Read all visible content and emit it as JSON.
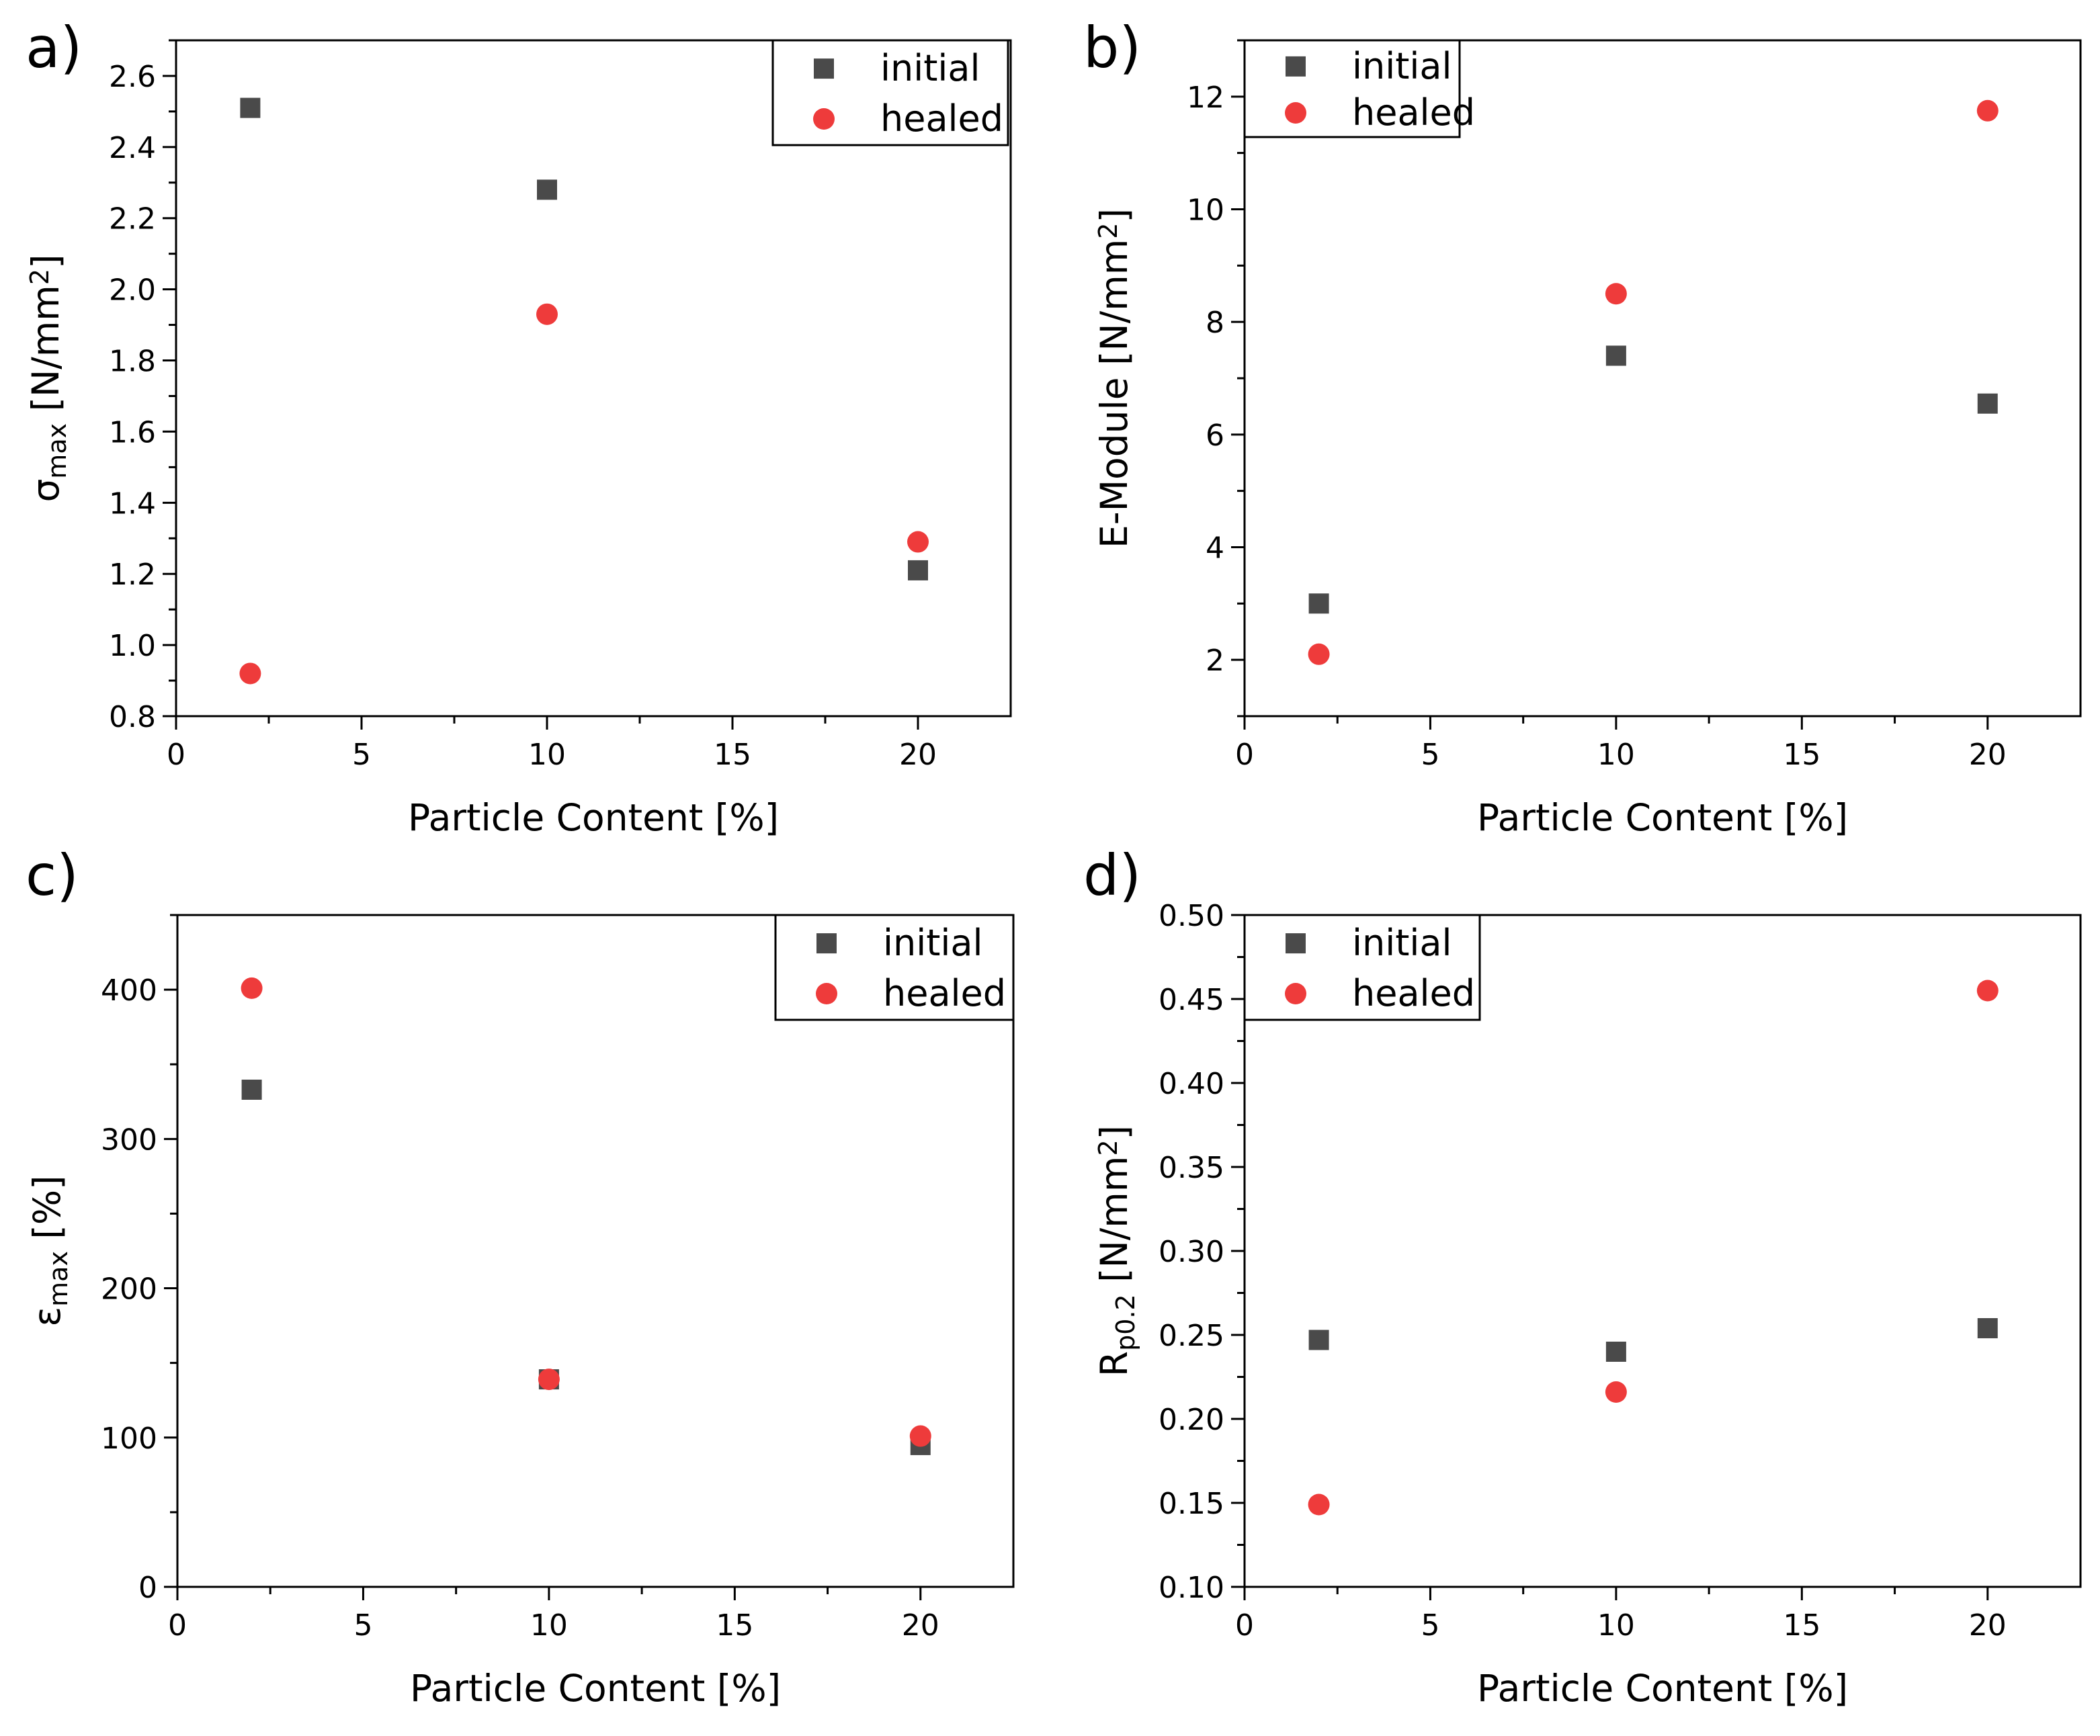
{
  "colors": {
    "initial": "#4a4a4a",
    "healed": "#ee3b3b",
    "axis": "#000000"
  },
  "chart_data": [
    {
      "type": "scatter",
      "panel": "a)",
      "xlabel": "Particle Content [%]",
      "ylabel": {
        "main": "σ",
        "sub": "max",
        "unit": " [N/mm",
        "sup": "2",
        "close": "]"
      },
      "xlim": [
        0,
        22.5
      ],
      "ylim": [
        0.8,
        2.7
      ],
      "xticks": [
        0,
        5,
        10,
        15,
        20
      ],
      "yticks": [
        0.8,
        1.0,
        1.2,
        1.4,
        1.6,
        1.8,
        2.0,
        2.2,
        2.4,
        2.6
      ],
      "ytick_labels": [
        "0.8",
        "1.0",
        "1.2",
        "1.4",
        "1.6",
        "1.8",
        "2.0",
        "2.2",
        "2.4",
        "2.6"
      ],
      "legend_position": "top-right",
      "series": [
        {
          "name": "initial",
          "marker": "square",
          "x": [
            2,
            10,
            20
          ],
          "y": [
            2.51,
            2.28,
            1.21
          ]
        },
        {
          "name": "healed",
          "marker": "circle",
          "x": [
            2,
            10,
            20
          ],
          "y": [
            0.92,
            1.93,
            1.29
          ]
        }
      ]
    },
    {
      "type": "scatter",
      "panel": "b)",
      "xlabel": "Particle Content [%]",
      "ylabel": {
        "main": "E-Module [N/mm",
        "sub": "",
        "unit": "",
        "sup": "2",
        "close": "]"
      },
      "xlim": [
        0,
        22.5
      ],
      "ylim": [
        1,
        13
      ],
      "xticks": [
        0,
        5,
        10,
        15,
        20
      ],
      "yticks": [
        2,
        4,
        6,
        8,
        10,
        12
      ],
      "ytick_labels": [
        "2",
        "4",
        "6",
        "8",
        "10",
        "12"
      ],
      "legend_position": "top-left",
      "series": [
        {
          "name": "initial",
          "marker": "square",
          "x": [
            2,
            10,
            20
          ],
          "y": [
            3.0,
            7.4,
            6.55
          ]
        },
        {
          "name": "healed",
          "marker": "circle",
          "x": [
            2,
            10,
            20
          ],
          "y": [
            2.1,
            8.5,
            11.75
          ]
        }
      ]
    },
    {
      "type": "scatter",
      "panel": "c)",
      "xlabel": "Particle Content [%]",
      "ylabel": {
        "main": "ε",
        "sub": "max",
        "unit": " [%]",
        "sup": "",
        "close": ""
      },
      "xlim": [
        0,
        22.5
      ],
      "ylim": [
        0,
        450
      ],
      "xticks": [
        0,
        5,
        10,
        15,
        20
      ],
      "yticks": [
        0,
        100,
        200,
        300,
        400
      ],
      "ytick_labels": [
        "0",
        "100",
        "200",
        "300",
        "400"
      ],
      "legend_position": "top-right",
      "series": [
        {
          "name": "initial",
          "marker": "square",
          "x": [
            2,
            10,
            20
          ],
          "y": [
            333,
            139,
            95
          ]
        },
        {
          "name": "healed",
          "marker": "circle",
          "x": [
            2,
            10,
            20
          ],
          "y": [
            401,
            139,
            101
          ]
        }
      ]
    },
    {
      "type": "scatter",
      "panel": "d)",
      "xlabel": "Particle Content [%]",
      "ylabel": {
        "main": "R",
        "sub": "p0.2",
        "unit": " [N/mm",
        "sup": "2",
        "close": "]"
      },
      "xlim": [
        0,
        22.5
      ],
      "ylim": [
        0.1,
        0.5
      ],
      "xticks": [
        0,
        5,
        10,
        15,
        20
      ],
      "yticks": [
        0.1,
        0.15,
        0.2,
        0.25,
        0.3,
        0.35,
        0.4,
        0.45,
        0.5
      ],
      "ytick_labels": [
        "0.10",
        "0.15",
        "0.20",
        "0.25",
        "0.30",
        "0.35",
        "0.40",
        "0.45",
        "0.50"
      ],
      "legend_position": "top-left",
      "series": [
        {
          "name": "initial",
          "marker": "square",
          "x": [
            2,
            10,
            20
          ],
          "y": [
            0.247,
            0.24,
            0.254
          ]
        },
        {
          "name": "healed",
          "marker": "circle",
          "x": [
            2,
            10,
            20
          ],
          "y": [
            0.149,
            0.216,
            0.455
          ]
        }
      ]
    }
  ]
}
